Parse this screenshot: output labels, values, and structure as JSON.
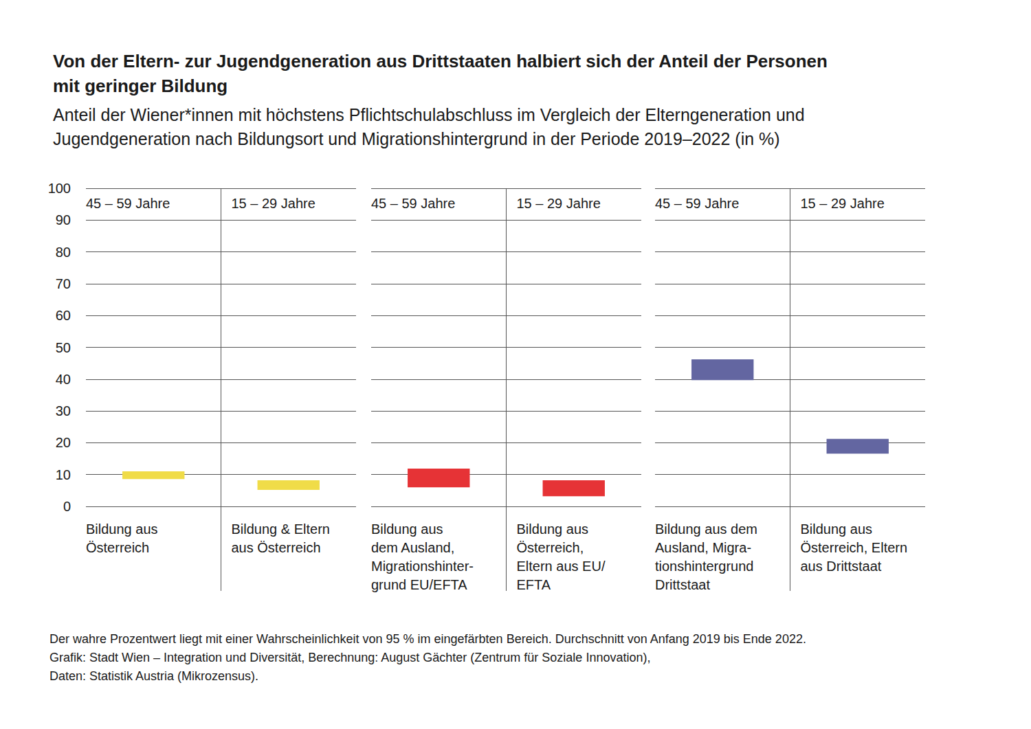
{
  "chart_data": {
    "type": "range_bar",
    "title": "Von der Eltern- zur Jugendgeneration aus Drittstaaten halbiert sich der Anteil der Personen\nmit geringer Bildung",
    "subtitle": "Anteil der Wiener*innen mit höchstens Pflichtschulabschluss im Vergleich der Elterngeneration und\nJugendgeneration nach Bildungsort und Migrationshintergrund in der Periode 2019–2022 (in %)",
    "note": "Der wahre Prozentwert liegt mit einer Wahrscheinlichkeit von 95 % im eingefärbten Bereich. Durchschnitt von Anfang 2019 bis Ende 2022.\nGrafik: Stadt Wien – Integration und Diversität, Berechnung: August Gächter (Zentrum für Soziale Innovation),\nDaten: Statistik Austria (Mikrozensus).",
    "ylim": [
      0,
      100
    ],
    "yticks": [
      0,
      10,
      20,
      30,
      40,
      50,
      60,
      70,
      80,
      90,
      100
    ],
    "grid": true,
    "tick_labels": "y",
    "series": [
      {
        "color": "#f0dc48",
        "headers": [
          "45 – 59 Jahre",
          "15 – 29 Jahre"
        ],
        "categories": [
          "Bildung aus\nÖsterreich",
          "Bildung & Eltern\naus Österreich"
        ],
        "low": [
          8.6,
          5.2
        ],
        "high": [
          11.0,
          8.2
        ]
      },
      {
        "color": "#e63336",
        "headers": [
          "45 – 59 Jahre",
          "15 – 29 Jahre"
        ],
        "categories": [
          "Bildung aus\ndem Ausland,\nMigrationshinter-\ngrund EU/EFTA",
          "Bildung aus\nÖsterreich,\nEltern aus EU/\nEFTA"
        ],
        "low": [
          6.0,
          3.2
        ],
        "high": [
          11.9,
          8.2
        ]
      },
      {
        "color": "#6366a1",
        "headers": [
          "45 – 59 Jahre",
          "15 – 29 Jahre"
        ],
        "categories": [
          "Bildung aus dem\nAusland, Migra-\ntionshintergrund\nDrittstaat",
          "Bildung aus\nÖsterreich, Eltern\naus Drittstaat"
        ],
        "low": [
          39.7,
          16.6
        ],
        "high": [
          46.2,
          21.2
        ]
      }
    ]
  }
}
